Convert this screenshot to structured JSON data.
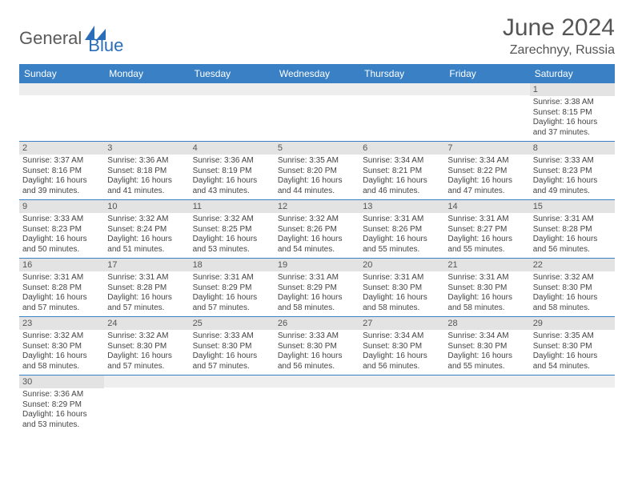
{
  "logo": {
    "part1": "General",
    "part2": "Blue"
  },
  "title": "June 2024",
  "location": "Zarechnyy, Russia",
  "colors": {
    "header_bg": "#3a80c4",
    "header_text": "#ffffff",
    "daynum_bg": "#e3e3e3",
    "border": "#3a80c4",
    "logo_gray": "#5a5a5a",
    "logo_blue": "#2a6db8"
  },
  "weekdays": [
    "Sunday",
    "Monday",
    "Tuesday",
    "Wednesday",
    "Thursday",
    "Friday",
    "Saturday"
  ],
  "weeks": [
    [
      {
        "n": "",
        "sr": "",
        "ss": "",
        "dl": ""
      },
      {
        "n": "",
        "sr": "",
        "ss": "",
        "dl": ""
      },
      {
        "n": "",
        "sr": "",
        "ss": "",
        "dl": ""
      },
      {
        "n": "",
        "sr": "",
        "ss": "",
        "dl": ""
      },
      {
        "n": "",
        "sr": "",
        "ss": "",
        "dl": ""
      },
      {
        "n": "",
        "sr": "",
        "ss": "",
        "dl": ""
      },
      {
        "n": "1",
        "sr": "Sunrise: 3:38 AM",
        "ss": "Sunset: 8:15 PM",
        "dl": "Daylight: 16 hours and 37 minutes."
      }
    ],
    [
      {
        "n": "2",
        "sr": "Sunrise: 3:37 AM",
        "ss": "Sunset: 8:16 PM",
        "dl": "Daylight: 16 hours and 39 minutes."
      },
      {
        "n": "3",
        "sr": "Sunrise: 3:36 AM",
        "ss": "Sunset: 8:18 PM",
        "dl": "Daylight: 16 hours and 41 minutes."
      },
      {
        "n": "4",
        "sr": "Sunrise: 3:36 AM",
        "ss": "Sunset: 8:19 PM",
        "dl": "Daylight: 16 hours and 43 minutes."
      },
      {
        "n": "5",
        "sr": "Sunrise: 3:35 AM",
        "ss": "Sunset: 8:20 PM",
        "dl": "Daylight: 16 hours and 44 minutes."
      },
      {
        "n": "6",
        "sr": "Sunrise: 3:34 AM",
        "ss": "Sunset: 8:21 PM",
        "dl": "Daylight: 16 hours and 46 minutes."
      },
      {
        "n": "7",
        "sr": "Sunrise: 3:34 AM",
        "ss": "Sunset: 8:22 PM",
        "dl": "Daylight: 16 hours and 47 minutes."
      },
      {
        "n": "8",
        "sr": "Sunrise: 3:33 AM",
        "ss": "Sunset: 8:23 PM",
        "dl": "Daylight: 16 hours and 49 minutes."
      }
    ],
    [
      {
        "n": "9",
        "sr": "Sunrise: 3:33 AM",
        "ss": "Sunset: 8:23 PM",
        "dl": "Daylight: 16 hours and 50 minutes."
      },
      {
        "n": "10",
        "sr": "Sunrise: 3:32 AM",
        "ss": "Sunset: 8:24 PM",
        "dl": "Daylight: 16 hours and 51 minutes."
      },
      {
        "n": "11",
        "sr": "Sunrise: 3:32 AM",
        "ss": "Sunset: 8:25 PM",
        "dl": "Daylight: 16 hours and 53 minutes."
      },
      {
        "n": "12",
        "sr": "Sunrise: 3:32 AM",
        "ss": "Sunset: 8:26 PM",
        "dl": "Daylight: 16 hours and 54 minutes."
      },
      {
        "n": "13",
        "sr": "Sunrise: 3:31 AM",
        "ss": "Sunset: 8:26 PM",
        "dl": "Daylight: 16 hours and 55 minutes."
      },
      {
        "n": "14",
        "sr": "Sunrise: 3:31 AM",
        "ss": "Sunset: 8:27 PM",
        "dl": "Daylight: 16 hours and 55 minutes."
      },
      {
        "n": "15",
        "sr": "Sunrise: 3:31 AM",
        "ss": "Sunset: 8:28 PM",
        "dl": "Daylight: 16 hours and 56 minutes."
      }
    ],
    [
      {
        "n": "16",
        "sr": "Sunrise: 3:31 AM",
        "ss": "Sunset: 8:28 PM",
        "dl": "Daylight: 16 hours and 57 minutes."
      },
      {
        "n": "17",
        "sr": "Sunrise: 3:31 AM",
        "ss": "Sunset: 8:28 PM",
        "dl": "Daylight: 16 hours and 57 minutes."
      },
      {
        "n": "18",
        "sr": "Sunrise: 3:31 AM",
        "ss": "Sunset: 8:29 PM",
        "dl": "Daylight: 16 hours and 57 minutes."
      },
      {
        "n": "19",
        "sr": "Sunrise: 3:31 AM",
        "ss": "Sunset: 8:29 PM",
        "dl": "Daylight: 16 hours and 58 minutes."
      },
      {
        "n": "20",
        "sr": "Sunrise: 3:31 AM",
        "ss": "Sunset: 8:30 PM",
        "dl": "Daylight: 16 hours and 58 minutes."
      },
      {
        "n": "21",
        "sr": "Sunrise: 3:31 AM",
        "ss": "Sunset: 8:30 PM",
        "dl": "Daylight: 16 hours and 58 minutes."
      },
      {
        "n": "22",
        "sr": "Sunrise: 3:32 AM",
        "ss": "Sunset: 8:30 PM",
        "dl": "Daylight: 16 hours and 58 minutes."
      }
    ],
    [
      {
        "n": "23",
        "sr": "Sunrise: 3:32 AM",
        "ss": "Sunset: 8:30 PM",
        "dl": "Daylight: 16 hours and 58 minutes."
      },
      {
        "n": "24",
        "sr": "Sunrise: 3:32 AM",
        "ss": "Sunset: 8:30 PM",
        "dl": "Daylight: 16 hours and 57 minutes."
      },
      {
        "n": "25",
        "sr": "Sunrise: 3:33 AM",
        "ss": "Sunset: 8:30 PM",
        "dl": "Daylight: 16 hours and 57 minutes."
      },
      {
        "n": "26",
        "sr": "Sunrise: 3:33 AM",
        "ss": "Sunset: 8:30 PM",
        "dl": "Daylight: 16 hours and 56 minutes."
      },
      {
        "n": "27",
        "sr": "Sunrise: 3:34 AM",
        "ss": "Sunset: 8:30 PM",
        "dl": "Daylight: 16 hours and 56 minutes."
      },
      {
        "n": "28",
        "sr": "Sunrise: 3:34 AM",
        "ss": "Sunset: 8:30 PM",
        "dl": "Daylight: 16 hours and 55 minutes."
      },
      {
        "n": "29",
        "sr": "Sunrise: 3:35 AM",
        "ss": "Sunset: 8:30 PM",
        "dl": "Daylight: 16 hours and 54 minutes."
      }
    ],
    [
      {
        "n": "30",
        "sr": "Sunrise: 3:36 AM",
        "ss": "Sunset: 8:29 PM",
        "dl": "Daylight: 16 hours and 53 minutes."
      },
      {
        "n": "",
        "sr": "",
        "ss": "",
        "dl": ""
      },
      {
        "n": "",
        "sr": "",
        "ss": "",
        "dl": ""
      },
      {
        "n": "",
        "sr": "",
        "ss": "",
        "dl": ""
      },
      {
        "n": "",
        "sr": "",
        "ss": "",
        "dl": ""
      },
      {
        "n": "",
        "sr": "",
        "ss": "",
        "dl": ""
      },
      {
        "n": "",
        "sr": "",
        "ss": "",
        "dl": ""
      }
    ]
  ]
}
